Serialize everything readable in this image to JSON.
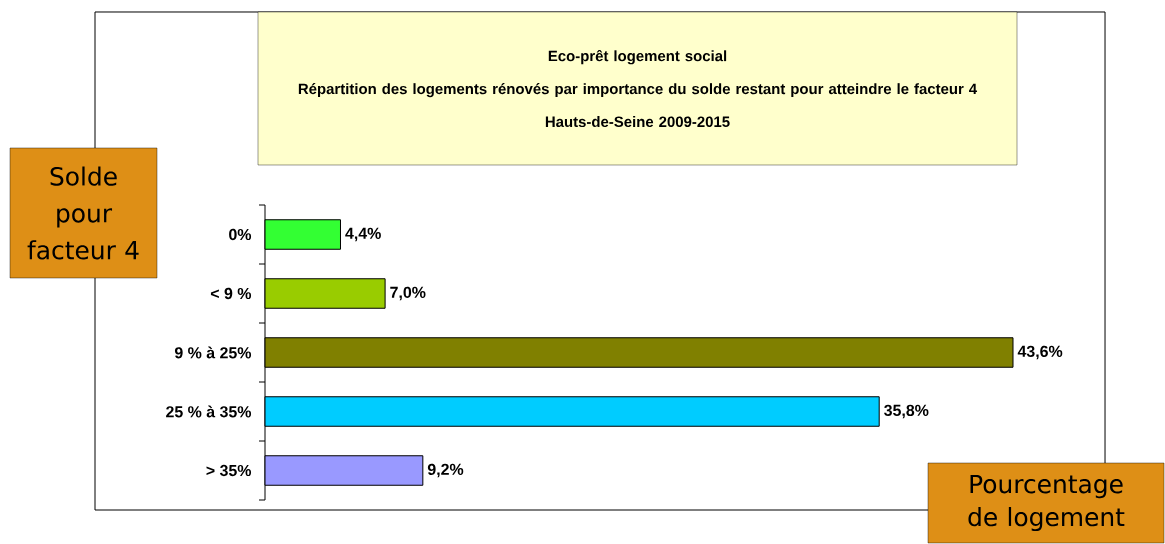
{
  "chart_data": {
    "type": "bar",
    "orientation": "horizontal",
    "title": "Eco-prêt logement social",
    "subtitle": "Répartition des logements rénovés par importance du solde restant pour atteindre le facteur 4",
    "annotations": [
      "Hauts-de-Seine 2009-2015"
    ],
    "ylabel": "Solde pour facteur 4",
    "xlabel": "Pourcentage de logement",
    "categories": [
      "0%",
      "< 9 %",
      "9 % à 25%",
      "25 % à 35%",
      "> 35%"
    ],
    "values": [
      4.4,
      7.0,
      43.6,
      35.8,
      9.2
    ],
    "value_labels": [
      "4,4%",
      "7,0%",
      "43,6%",
      "35,8%",
      "9,2%"
    ],
    "colors": [
      "#33ff33",
      "#99cc00",
      "#808000",
      "#00ccff",
      "#9999ff"
    ]
  }
}
